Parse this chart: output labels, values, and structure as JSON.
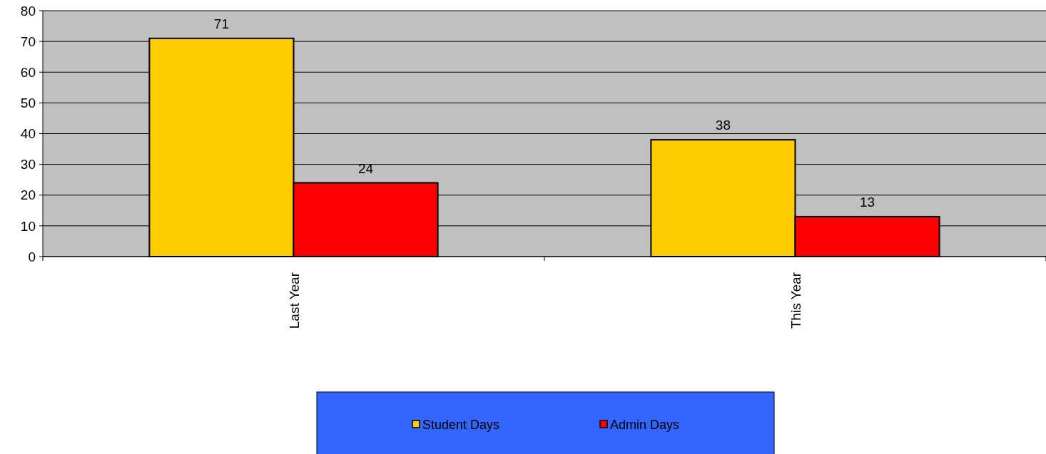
{
  "chart_data": {
    "type": "bar",
    "categories": [
      "Last Year",
      "This Year"
    ],
    "series": [
      {
        "name": "Student Days",
        "color": "#ffcc00",
        "values": [
          71,
          38
        ]
      },
      {
        "name": "Admin Days",
        "color": "#ff0000",
        "values": [
          24,
          13
        ]
      }
    ],
    "ylim": [
      0,
      80
    ],
    "yticks": [
      0,
      10,
      20,
      30,
      40,
      50,
      60,
      70,
      80
    ],
    "grid": "y",
    "legend": "bottom",
    "data_labels": true
  }
}
